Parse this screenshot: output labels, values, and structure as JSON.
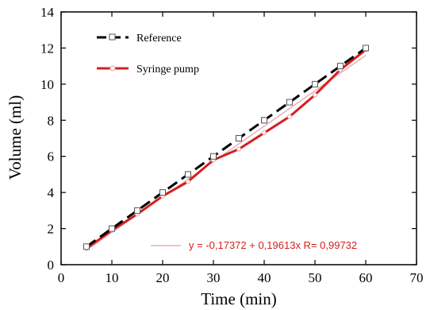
{
  "chart_data": {
    "type": "line",
    "xlabel": "Time (min)",
    "ylabel": "Volume (ml)",
    "xlim": [
      0,
      70
    ],
    "ylim": [
      0,
      14
    ],
    "xticks": [
      0,
      10,
      20,
      30,
      40,
      50,
      60,
      70
    ],
    "yticks": [
      0,
      2,
      4,
      6,
      8,
      10,
      12,
      14
    ],
    "grid": false,
    "legend_position": "top-left",
    "series": [
      {
        "name": "Reference",
        "style": "dashed",
        "marker": "square",
        "color": "#000000",
        "x": [
          5,
          10,
          15,
          20,
          25,
          30,
          35,
          40,
          45,
          50,
          55,
          60
        ],
        "y": [
          1,
          2,
          3,
          4,
          5,
          6,
          7,
          8,
          9,
          10,
          11,
          12
        ]
      },
      {
        "name": "Syringe pump",
        "style": "solid",
        "marker": "circle",
        "color": "#d42020",
        "x": [
          5,
          10,
          15,
          20,
          25,
          30,
          35,
          40,
          45,
          50,
          55,
          60
        ],
        "y": [
          0.9,
          1.9,
          2.8,
          3.8,
          4.6,
          5.8,
          6.4,
          7.3,
          8.2,
          9.4,
          10.8,
          11.9
        ]
      }
    ],
    "fit": {
      "text": "y = -0,17372 + 0,19613x   R= 0,99732",
      "intercept": -0.17372,
      "slope": 0.19613,
      "x_range": [
        5,
        60
      ],
      "color": "#e8b0b8",
      "text_color": "#d42020"
    }
  }
}
